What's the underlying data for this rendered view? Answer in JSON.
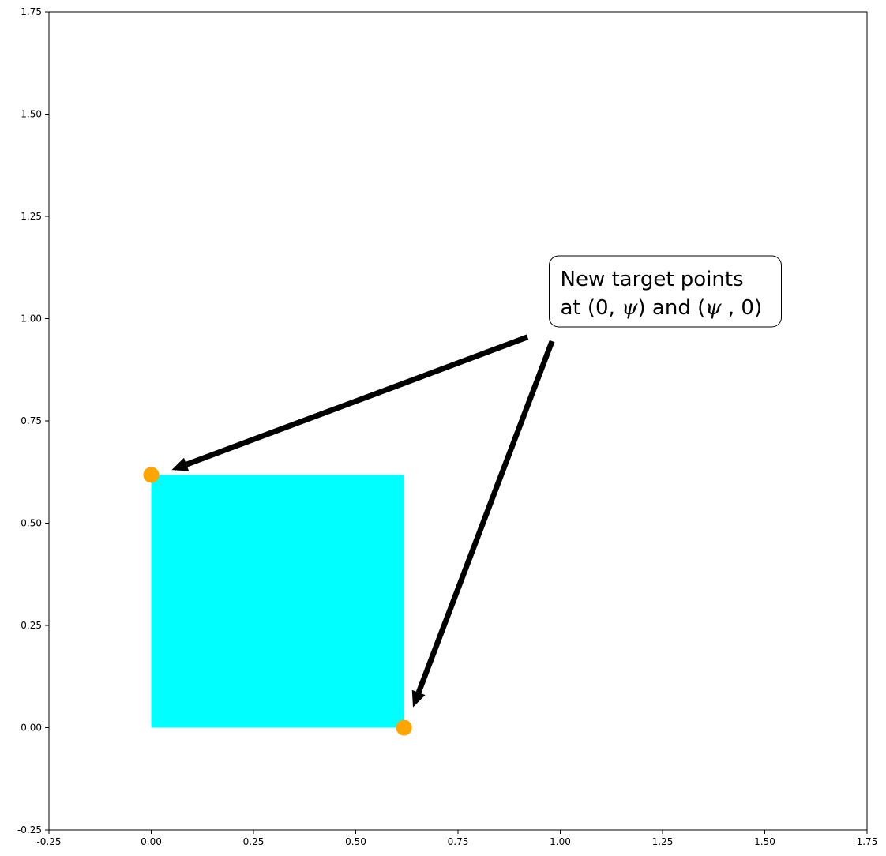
{
  "chart_data": {
    "type": "scatter",
    "xlim": [
      -0.25,
      1.75
    ],
    "ylim": [
      -0.25,
      1.75
    ],
    "xticks": [
      "-0.25",
      "0.00",
      "0.25",
      "0.50",
      "0.75",
      "1.00",
      "1.25",
      "1.50",
      "1.75"
    ],
    "yticks": [
      "-0.25",
      "0.00",
      "0.25",
      "0.50",
      "0.75",
      "1.00",
      "1.25",
      "1.50",
      "1.75"
    ],
    "grid": false,
    "square": {
      "x0": 0,
      "y0": 0,
      "x1": 0.618,
      "y1": 0.618,
      "color": "#00ffff"
    },
    "points": [
      {
        "x": 0,
        "y": 0.618
      },
      {
        "x": 0.618,
        "y": 0
      }
    ],
    "point_color": "#ffa500",
    "annotation": {
      "line1": "New target points",
      "line2_prefix": "at (0, ",
      "psi": "ψ",
      "line2_mid": ") and (",
      "line2_suffix": " , 0)",
      "anchor": {
        "x": 1.0,
        "y": 1.03
      },
      "arrows": [
        {
          "from": {
            "x": 0.92,
            "y": 0.955
          },
          "to": {
            "x": 0.05,
            "y": 0.63
          }
        },
        {
          "from": {
            "x": 0.98,
            "y": 0.945
          },
          "to": {
            "x": 0.64,
            "y": 0.05
          }
        }
      ]
    }
  }
}
